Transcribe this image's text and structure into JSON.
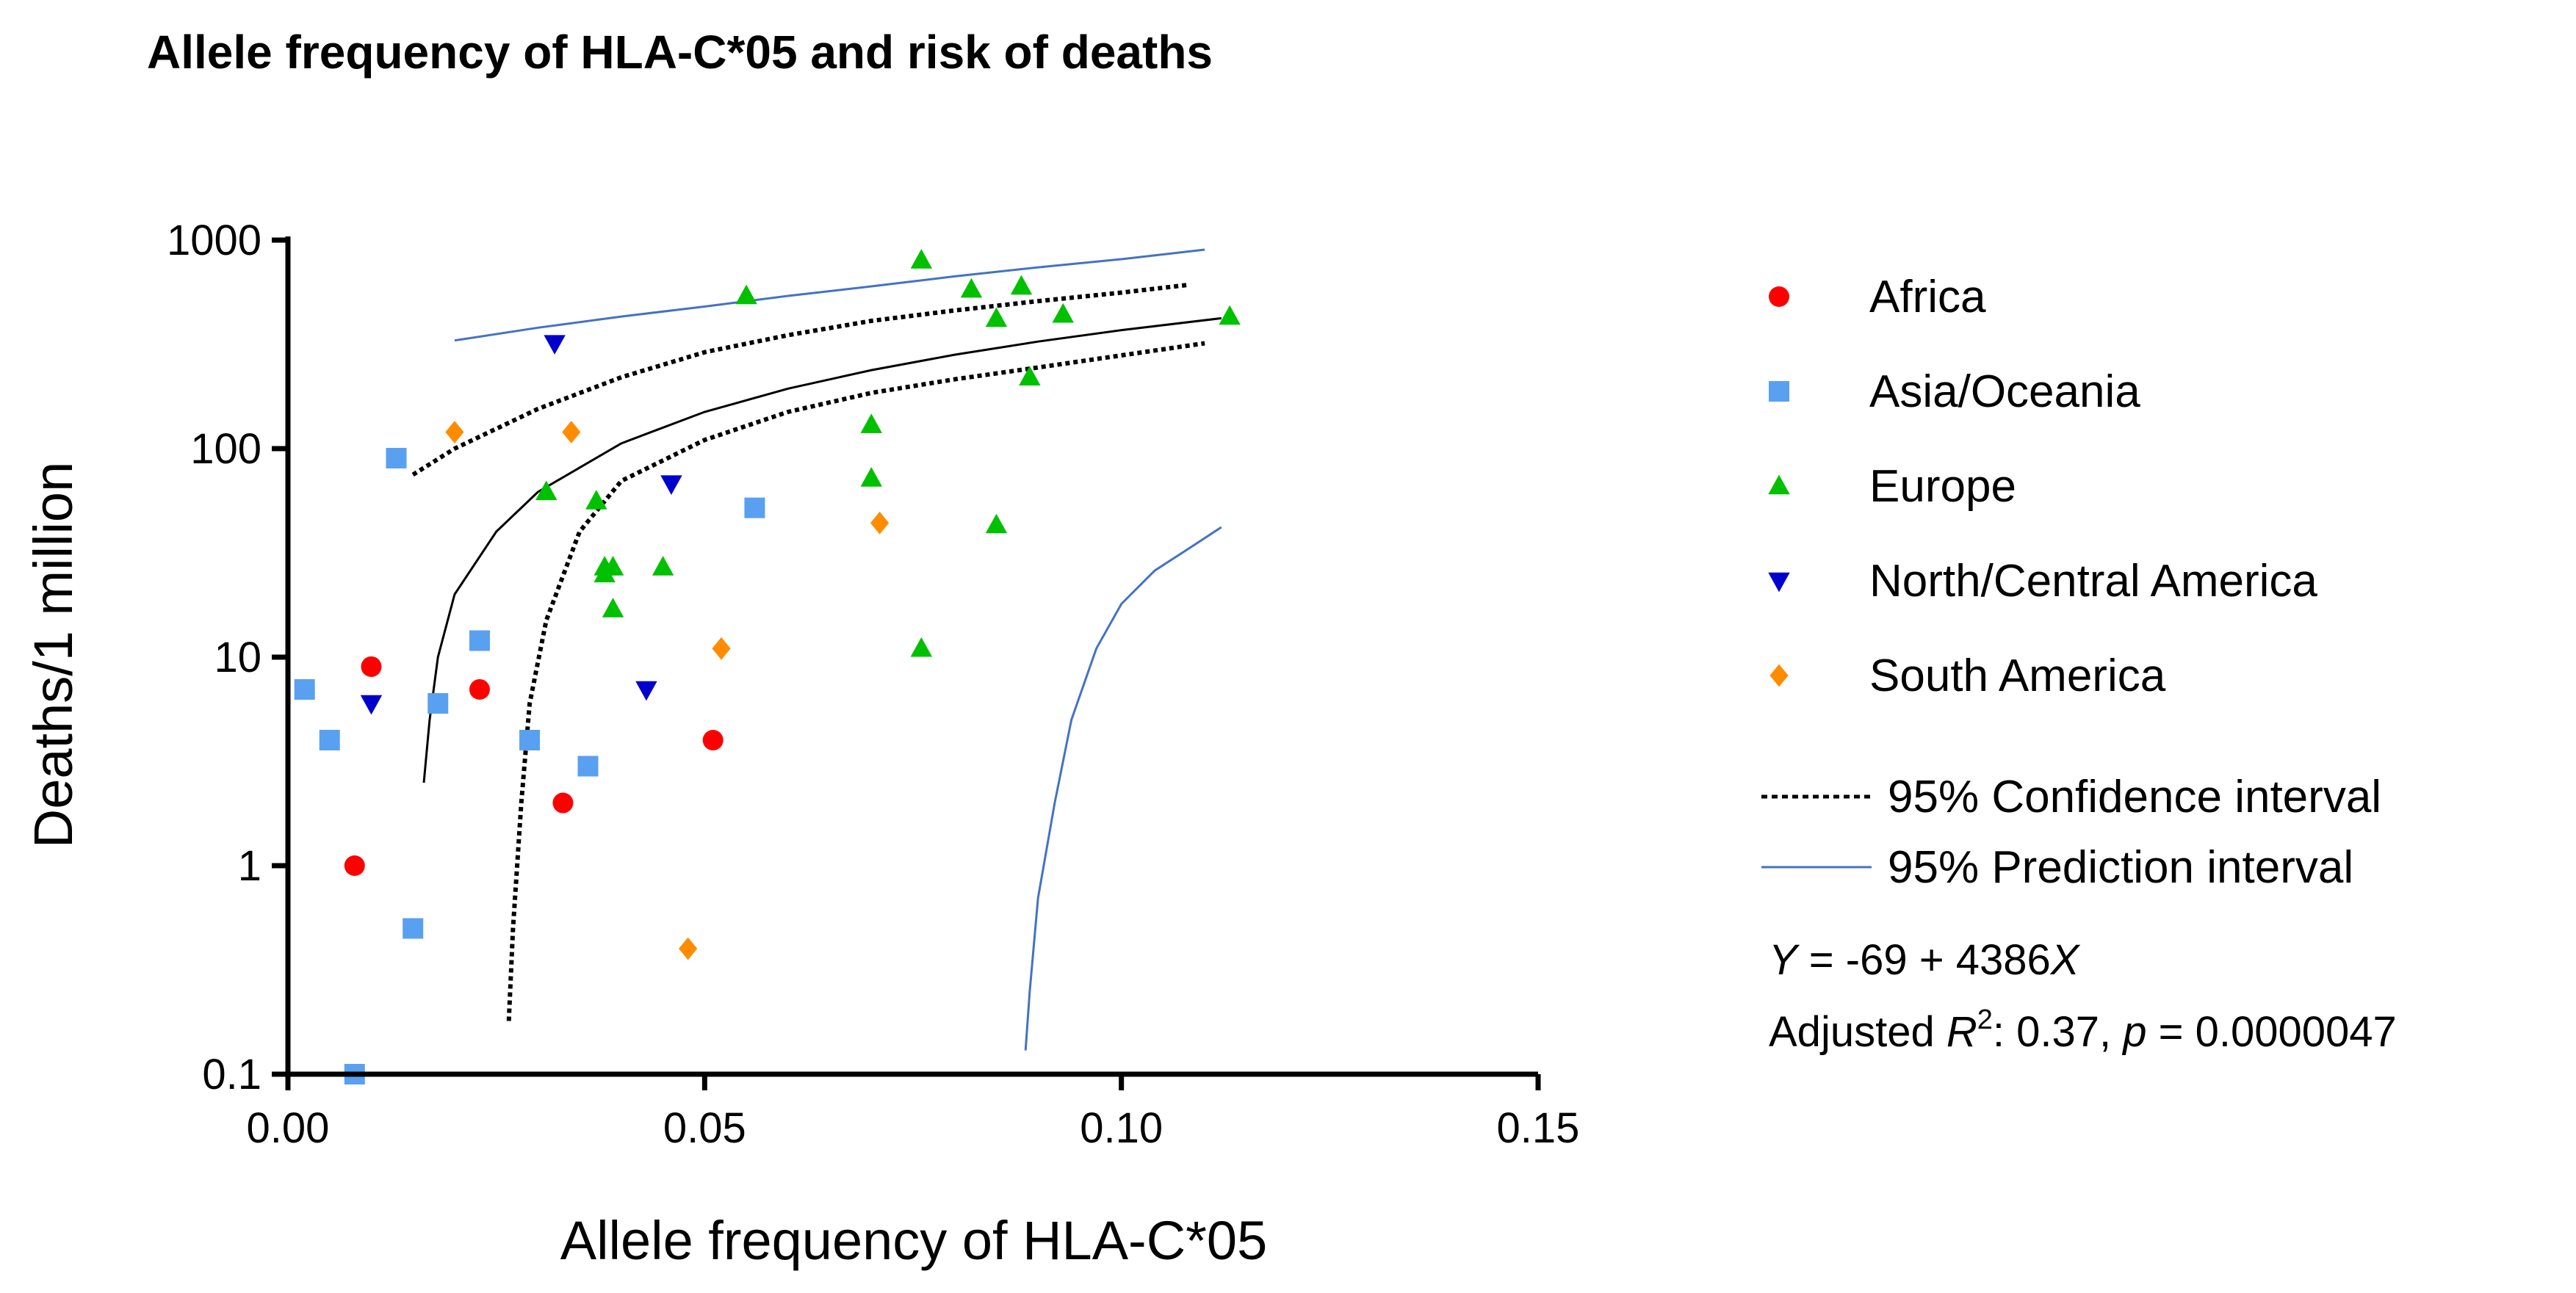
{
  "chart_data": {
    "type": "scatter",
    "title": "Allele frequency of HLA-C*05 and risk of deaths",
    "xlabel": "Allele frequency of HLA-C*05",
    "ylabel": "Deaths/1 million",
    "xlim": [
      0,
      0.15
    ],
    "ylim": [
      0.1,
      1000
    ],
    "yscale": "log",
    "xticks": [
      0.0,
      0.05,
      0.1,
      0.15
    ],
    "xtick_labels": [
      "0.00",
      "0.05",
      "0.10",
      "0.15"
    ],
    "yticks": [
      0.1,
      1,
      10,
      100,
      1000
    ],
    "ytick_labels": [
      "0.1",
      "1",
      "10",
      "100",
      "1000"
    ],
    "legend_position": "right",
    "series": [
      {
        "name": "Africa",
        "marker": "circle",
        "color": "#ff0000",
        "points": [
          [
            0.008,
            1
          ],
          [
            0.01,
            9
          ],
          [
            0.023,
            7
          ],
          [
            0.033,
            2
          ],
          [
            0.051,
            4
          ]
        ]
      },
      {
        "name": "Asia/Oceania",
        "marker": "square",
        "color": "#5aa0f0",
        "points": [
          [
            0.002,
            7
          ],
          [
            0.005,
            4
          ],
          [
            0.008,
            0.1
          ],
          [
            0.013,
            90
          ],
          [
            0.015,
            0.5
          ],
          [
            0.018,
            6
          ],
          [
            0.023,
            12
          ],
          [
            0.029,
            4
          ],
          [
            0.036,
            3
          ],
          [
            0.056,
            52
          ]
        ]
      },
      {
        "name": "Europe",
        "marker": "triangle-up",
        "color": "#00c000",
        "points": [
          [
            0.031,
            62
          ],
          [
            0.037,
            56
          ],
          [
            0.038,
            25
          ],
          [
            0.038,
            27
          ],
          [
            0.039,
            27
          ],
          [
            0.039,
            17
          ],
          [
            0.045,
            27
          ],
          [
            0.055,
            540
          ],
          [
            0.07,
            130
          ],
          [
            0.07,
            72
          ],
          [
            0.076,
            800
          ],
          [
            0.076,
            11
          ],
          [
            0.082,
            580
          ],
          [
            0.085,
            420
          ],
          [
            0.085,
            43
          ],
          [
            0.088,
            600
          ],
          [
            0.089,
            220
          ],
          [
            0.093,
            440
          ],
          [
            0.113,
            430
          ]
        ]
      },
      {
        "name": "North/Central America",
        "marker": "triangle-down",
        "color": "#0000cc",
        "points": [
          [
            0.01,
            6
          ],
          [
            0.032,
            320
          ],
          [
            0.043,
            7
          ],
          [
            0.046,
            68
          ]
        ]
      },
      {
        "name": "South America",
        "marker": "diamond",
        "color": "#ff8c00",
        "points": [
          [
            0.02,
            120
          ],
          [
            0.034,
            120
          ],
          [
            0.048,
            0.4
          ],
          [
            0.052,
            11
          ],
          [
            0.071,
            44
          ]
        ]
      }
    ],
    "fit_line": {
      "color": "#000000",
      "points": [
        [
          0.0163,
          2.5
        ],
        [
          0.017,
          5
        ],
        [
          0.018,
          10
        ],
        [
          0.02,
          20
        ],
        [
          0.025,
          40
        ],
        [
          0.03,
          62
        ],
        [
          0.04,
          106
        ],
        [
          0.05,
          150
        ],
        [
          0.06,
          194
        ],
        [
          0.07,
          238
        ],
        [
          0.08,
          282
        ],
        [
          0.09,
          326
        ],
        [
          0.1,
          370
        ],
        [
          0.112,
          422
        ]
      ]
    },
    "confidence_interval": {
      "name": "95% Confidence interval",
      "color": "#000000",
      "upper": [
        [
          0.015,
          75
        ],
        [
          0.02,
          100
        ],
        [
          0.03,
          155
        ],
        [
          0.04,
          220
        ],
        [
          0.05,
          290
        ],
        [
          0.06,
          350
        ],
        [
          0.07,
          410
        ],
        [
          0.08,
          460
        ],
        [
          0.09,
          510
        ],
        [
          0.1,
          560
        ],
        [
          0.108,
          610
        ]
      ],
      "lower": [
        [
          0.0265,
          0.18
        ],
        [
          0.027,
          0.5
        ],
        [
          0.028,
          2
        ],
        [
          0.029,
          6
        ],
        [
          0.031,
          15
        ],
        [
          0.035,
          40
        ],
        [
          0.04,
          70
        ],
        [
          0.05,
          110
        ],
        [
          0.06,
          150
        ],
        [
          0.07,
          185
        ],
        [
          0.08,
          215
        ],
        [
          0.09,
          245
        ],
        [
          0.1,
          280
        ],
        [
          0.11,
          320
        ]
      ]
    },
    "prediction_interval": {
      "name": "95% Prediction interval",
      "color": "#4472c4",
      "upper": [
        [
          0.02,
          330
        ],
        [
          0.03,
          380
        ],
        [
          0.04,
          430
        ],
        [
          0.05,
          480
        ],
        [
          0.06,
          540
        ],
        [
          0.07,
          600
        ],
        [
          0.08,
          670
        ],
        [
          0.09,
          740
        ],
        [
          0.1,
          810
        ],
        [
          0.11,
          900
        ]
      ],
      "lower": [
        [
          0.0885,
          0.13
        ],
        [
          0.089,
          0.25
        ],
        [
          0.09,
          0.7
        ],
        [
          0.092,
          2
        ],
        [
          0.094,
          5
        ],
        [
          0.097,
          11
        ],
        [
          0.1,
          18
        ],
        [
          0.104,
          26
        ],
        [
          0.108,
          33
        ],
        [
          0.112,
          42
        ]
      ]
    },
    "equation": {
      "y_var": "Y",
      "equals": " = -69 + 4386",
      "x_var": "X",
      "r2_prefix": "Adjusted ",
      "r2_var": "R",
      "r2_sup": "2",
      "r2_value": ":  0.37, ",
      "p_var": "p",
      "p_value": " = 0.0000047"
    }
  }
}
